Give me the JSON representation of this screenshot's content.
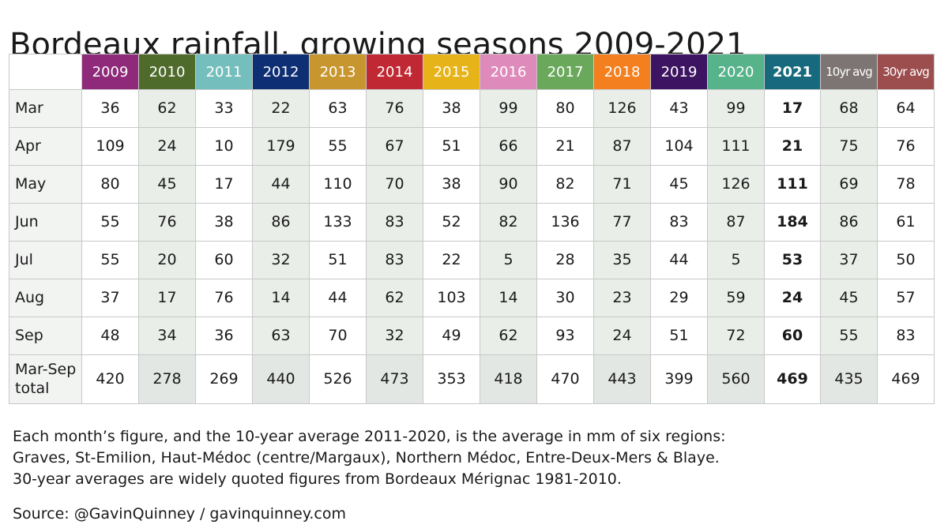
{
  "chart_data": {
    "type": "table",
    "title": "Bordeaux rainfall, growing seasons 2009-2021",
    "columns": [
      {
        "label": "2009",
        "color": "#8e2a79",
        "bold": false
      },
      {
        "label": "2010",
        "color": "#4e6b2c",
        "bold": false
      },
      {
        "label": "2011",
        "color": "#74bfbd",
        "bold": false
      },
      {
        "label": "2012",
        "color": "#0e2f73",
        "bold": false
      },
      {
        "label": "2013",
        "color": "#c8962f",
        "bold": false
      },
      {
        "label": "2014",
        "color": "#c02833",
        "bold": false
      },
      {
        "label": "2015",
        "color": "#e6b418",
        "bold": false
      },
      {
        "label": "2016",
        "color": "#de8bbb",
        "bold": false
      },
      {
        "label": "2017",
        "color": "#6aa85b",
        "bold": false
      },
      {
        "label": "2018",
        "color": "#f37f1e",
        "bold": false
      },
      {
        "label": "2019",
        "color": "#3c1461",
        "bold": false
      },
      {
        "label": "2020",
        "color": "#56b38a",
        "bold": false
      },
      {
        "label": "2021",
        "color": "#176a7d",
        "bold": true
      },
      {
        "label": "10yr avg",
        "color": "#7d7574",
        "bold": false
      },
      {
        "label": "30yr avg",
        "color": "#9c4d4e",
        "bold": false
      }
    ],
    "rows": [
      {
        "label": "Mar",
        "values": [
          "36",
          "62",
          "33",
          "22",
          "63",
          "76",
          "38",
          "99",
          "80",
          "126",
          "43",
          "99",
          "17",
          "68",
          "64"
        ]
      },
      {
        "label": "Apr",
        "values": [
          "109",
          "24",
          "10",
          "179",
          "55",
          "67",
          "51",
          "66",
          "21",
          "87",
          "104",
          "111",
          "21",
          "75",
          "76"
        ]
      },
      {
        "label": "May",
        "values": [
          "80",
          "45",
          "17",
          "44",
          "110",
          "70",
          "38",
          "90",
          "82",
          "71",
          "45",
          "126",
          "111",
          "69",
          "78"
        ]
      },
      {
        "label": "Jun",
        "values": [
          "55",
          "76",
          "38",
          "86",
          "133",
          "83",
          "52",
          "82",
          "136",
          "77",
          "83",
          "87",
          "184",
          "86",
          "61"
        ]
      },
      {
        "label": "Jul",
        "values": [
          "55",
          "20",
          "60",
          "32",
          "51",
          "83",
          "22",
          "5",
          "28",
          "35",
          "44",
          "5",
          "53",
          "37",
          "50"
        ]
      },
      {
        "label": "Aug",
        "values": [
          "37",
          "17",
          "76",
          "14",
          "44",
          "62",
          "103",
          "14",
          "30",
          "23",
          "29",
          "59",
          "24",
          "45",
          "57"
        ]
      },
      {
        "label": "Sep",
        "values": [
          "48",
          "34",
          "36",
          "63",
          "70",
          "32",
          "49",
          "62",
          "93",
          "24",
          "51",
          "72",
          "60",
          "55",
          "83"
        ]
      },
      {
        "label": "Mar-Sep total",
        "values": [
          "420",
          "278",
          "269",
          "440",
          "526",
          "473",
          "353",
          "418",
          "470",
          "443",
          "399",
          "560",
          "469",
          "435",
          "469"
        ]
      }
    ]
  },
  "notes": [
    "Each month’s figure, and the 10-year average 2011-2020, is the average in mm of six regions:",
    "Graves, St-Emilion, Haut-Médoc (centre/Margaux), Northern Médoc, Entre-Deux-Mers & Blaye.",
    "30-year averages are widely quoted figures from Bordeaux Mérignac 1981-2010."
  ],
  "source": "Source: @GavinQuinney / gavinquinney.com"
}
